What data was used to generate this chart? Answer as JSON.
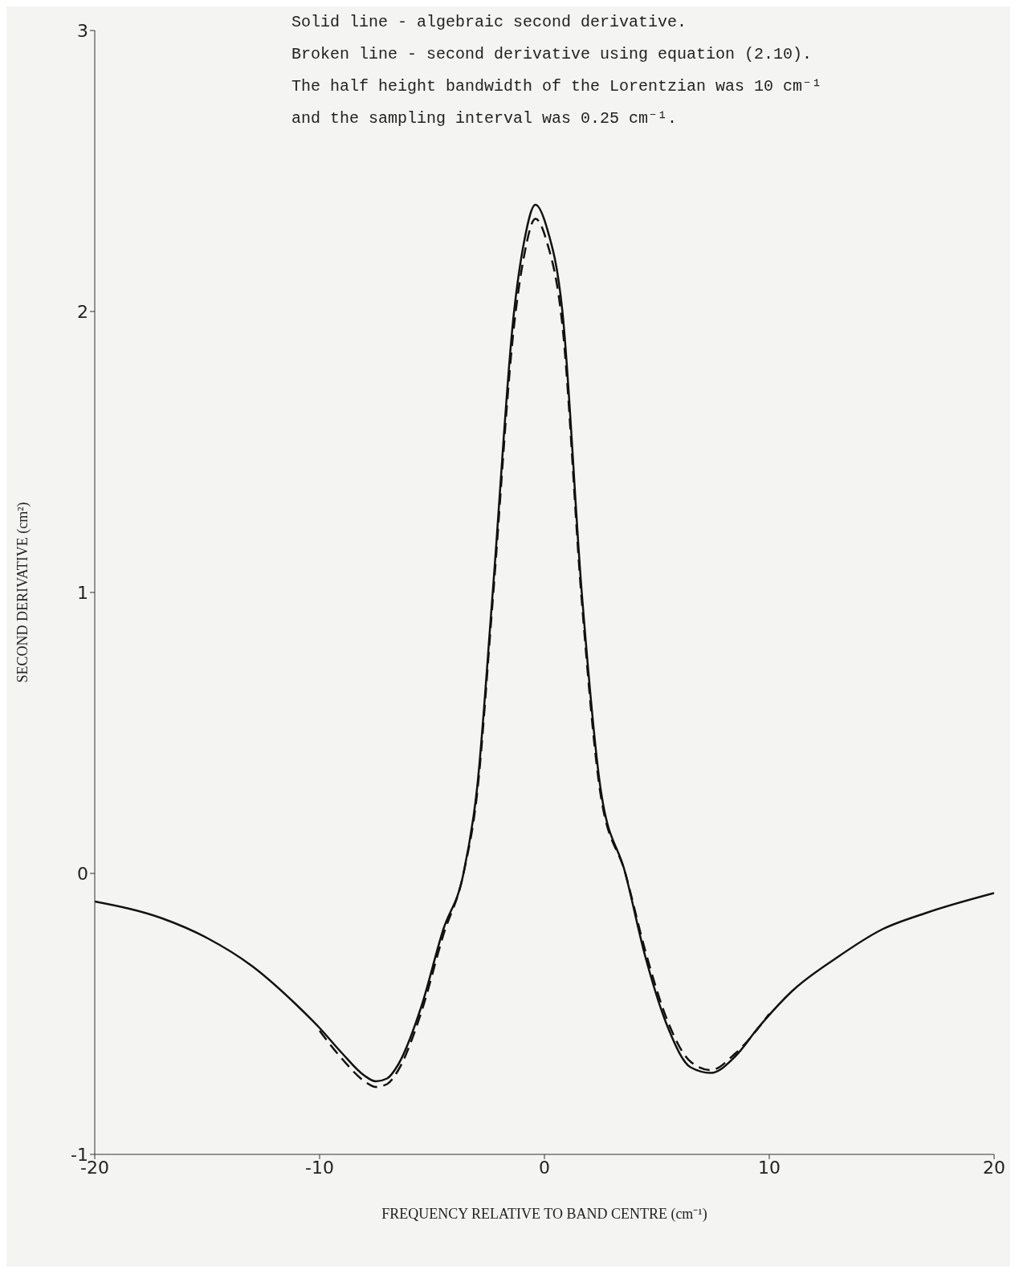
{
  "chart_data": {
    "type": "line",
    "xlabel": "FREQUENCY RELATIVE TO BAND CENTRE (cm⁻¹)",
    "ylabel": "SECOND DERIVATIVE (cm²)",
    "annotations": [
      "Solid line - algebraic second derivative.",
      "Broken line - second derivative using equation (2.10).",
      "The half height bandwidth of the Lorentzian was 10 cm⁻¹",
      "and the sampling interval was 0.25 cm⁻¹."
    ],
    "xlim": [
      -20,
      20
    ],
    "xticks": [
      -20,
      -10,
      0,
      10,
      20
    ],
    "ylim": [
      -1,
      3
    ],
    "yticks": [
      -1,
      0,
      1,
      2,
      3
    ],
    "grid": false,
    "series": [
      {
        "color": "#111111",
        "line_style": "solid",
        "x": [
          -20,
          -17,
          -15,
          -13,
          -11,
          -10,
          -9,
          -8,
          -7.5,
          -7,
          -6.5,
          -5.5,
          -4.5,
          -3.6,
          -3,
          -2.3,
          -1.35,
          -0.9,
          -0.4,
          0.1,
          0.8,
          1.66,
          2.5,
          3.6,
          4.5,
          5.5,
          6.5,
          7.4,
          8.5,
          9.5,
          11,
          13,
          15,
          17,
          20
        ],
        "values": [
          -0.1,
          -0.16,
          -0.23,
          -0.33,
          -0.47,
          -0.55,
          -0.64,
          -0.72,
          -0.74,
          -0.73,
          -0.68,
          -0.48,
          -0.2,
          0,
          0.3,
          1,
          2,
          2.25,
          2.38,
          2.3,
          2,
          1,
          0.3,
          0,
          -0.3,
          -0.55,
          -0.69,
          -0.71,
          -0.65,
          -0.55,
          -0.42,
          -0.3,
          -0.2,
          -0.14,
          -0.07
        ]
      },
      {
        "color": "#111111",
        "line_style": "dashed",
        "x": [
          -10,
          -9,
          -8,
          -7.5,
          -7,
          -6.5,
          -5.5,
          -4.5,
          -3.6,
          -3,
          -2.3,
          -1.35,
          -0.9,
          -0.4,
          0.1,
          0.8,
          1.66,
          2.5,
          3.6,
          4.5,
          5.5,
          6.5,
          7.4,
          8.5,
          10
        ],
        "values": [
          -0.56,
          -0.66,
          -0.74,
          -0.76,
          -0.75,
          -0.7,
          -0.5,
          -0.22,
          0,
          0.28,
          0.97,
          1.95,
          2.2,
          2.33,
          2.25,
          1.95,
          0.97,
          0.28,
          0,
          -0.28,
          -0.53,
          -0.67,
          -0.7,
          -0.64,
          -0.5
        ]
      }
    ]
  }
}
